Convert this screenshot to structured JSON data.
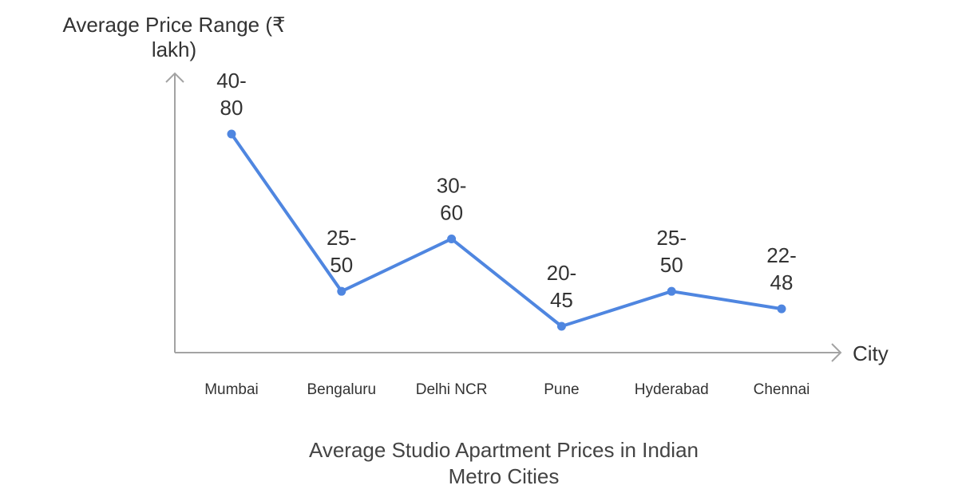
{
  "chart_data": {
    "type": "line",
    "title": "Average Studio Apartment Prices in Indian Metro Cities",
    "xlabel": "City",
    "ylabel": "Average Price Range (₹ lakh)",
    "categories": [
      "Mumbai",
      "Bengaluru",
      "Delhi NCR",
      "Pune",
      "Hyderabad",
      "Chennai"
    ],
    "series": [
      {
        "values": [
          60,
          37.5,
          45,
          32.5,
          37.5,
          35
        ],
        "labels": [
          "40-80",
          "25-50",
          "30-60",
          "20-45",
          "25-50",
          "22-48"
        ]
      }
    ],
    "ylim": [
      30,
      62
    ],
    "grid": false,
    "legend": "none",
    "color": "#4f86e0"
  }
}
